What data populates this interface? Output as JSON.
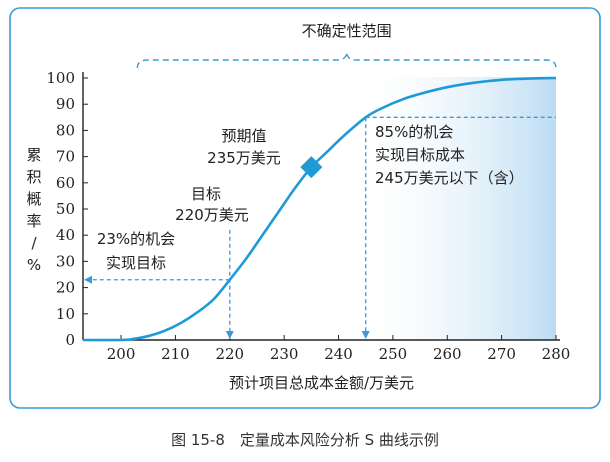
{
  "chart_data": {
    "type": "line",
    "range_label": "不确定性范围",
    "xlabel": "预计项目总成本金额/万美元",
    "ylabel": "累积概率/%",
    "ylabel_chars": [
      "累",
      "积",
      "概",
      "率",
      "/",
      "%"
    ],
    "x_ticks": [
      200,
      210,
      220,
      230,
      240,
      250,
      260,
      270,
      280
    ],
    "y_ticks": [
      0,
      10,
      20,
      30,
      40,
      50,
      60,
      70,
      80,
      90,
      100
    ],
    "xlim": [
      193,
      280
    ],
    "ylim": [
      0,
      100
    ],
    "series": [
      {
        "x": [
          193,
          200,
          202,
          205,
          208,
          211,
          214,
          217,
          220,
          223,
          226,
          229,
          232,
          235,
          238,
          241,
          245,
          248,
          252,
          256,
          260,
          265,
          270,
          275,
          280
        ],
        "y": [
          0,
          0,
          0.3,
          1.5,
          3.5,
          6.5,
          10.5,
          15.5,
          23,
          31,
          40,
          49,
          58,
          66,
          72,
          78,
          85,
          88.5,
          92,
          94.5,
          96.5,
          98.2,
          99.3,
          99.8,
          100
        ]
      }
    ],
    "markers": [
      {
        "id": "expected",
        "x": 235,
        "y": 66,
        "label_lines": [
          "预期值",
          "235万美元"
        ]
      }
    ],
    "annotations": [
      {
        "id": "target",
        "x": 220,
        "y": 23,
        "label_lines": [
          "目标",
          "220万美元"
        ],
        "prob_lines": [
          "23%的机会",
          "实现目标"
        ]
      },
      {
        "id": "p85",
        "x": 245,
        "y": 85,
        "label_lines": [
          "85%的机会",
          "实现目标成本",
          "245万美元以下（含）"
        ]
      }
    ],
    "shaded_from_x": 245,
    "colors": {
      "curve": "#1f9ad6",
      "frame": "#3a9ad9",
      "shade": "#cfe6f6"
    }
  },
  "caption": "图 15-8　定量成本风险分析 S 曲线示例"
}
